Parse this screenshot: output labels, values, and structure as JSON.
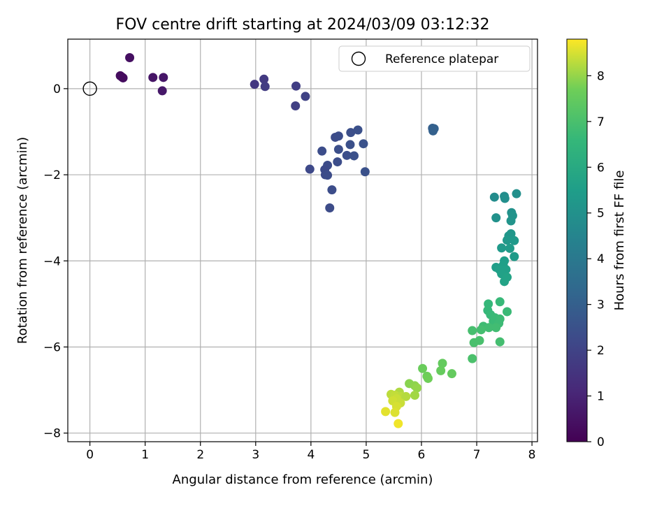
{
  "chart_data": {
    "type": "scatter",
    "title": "FOV centre drift starting at 2024/03/09 03:12:32",
    "xlabel": "Angular distance from reference (arcmin)",
    "ylabel": "Rotation from reference (arcmin)",
    "xlim": [
      -0.4,
      8.1
    ],
    "ylim": [
      -8.2,
      1.15
    ],
    "xticks": [
      0,
      1,
      2,
      3,
      4,
      5,
      6,
      7,
      8
    ],
    "yticks": [
      0,
      -2,
      -4,
      -6,
      -8
    ],
    "grid": true,
    "legend": {
      "position": "top-right",
      "entries": [
        "Reference platepar"
      ]
    },
    "reference_point": {
      "x": 0,
      "y": 0,
      "marker": "open-circle"
    },
    "colorbar": {
      "label": "Hours from first FF file",
      "colormap": "viridis",
      "min": 0,
      "max": 8.8,
      "ticks": [
        0,
        1,
        2,
        3,
        4,
        5,
        6,
        7,
        8
      ]
    },
    "points": [
      {
        "x": 0.55,
        "y": 0.3,
        "c": 0.3
      },
      {
        "x": 0.6,
        "y": 0.25,
        "c": 0.35
      },
      {
        "x": 0.58,
        "y": 0.27,
        "c": 0.3
      },
      {
        "x": 0.72,
        "y": 0.72,
        "c": 0.4
      },
      {
        "x": 1.14,
        "y": 0.26,
        "c": 0.55
      },
      {
        "x": 1.33,
        "y": 0.26,
        "c": 0.6
      },
      {
        "x": 1.31,
        "y": -0.05,
        "c": 0.65
      },
      {
        "x": 2.98,
        "y": 0.1,
        "c": 1.6
      },
      {
        "x": 3.15,
        "y": 0.22,
        "c": 1.7
      },
      {
        "x": 3.17,
        "y": 0.05,
        "c": 1.75
      },
      {
        "x": 3.73,
        "y": 0.06,
        "c": 1.85
      },
      {
        "x": 3.72,
        "y": -0.4,
        "c": 1.9
      },
      {
        "x": 3.9,
        "y": -0.18,
        "c": 1.95
      },
      {
        "x": 4.44,
        "y": -1.13,
        "c": 2.3
      },
      {
        "x": 4.5,
        "y": -1.1,
        "c": 2.35
      },
      {
        "x": 4.72,
        "y": -1.02,
        "c": 2.4
      },
      {
        "x": 4.85,
        "y": -0.96,
        "c": 2.45
      },
      {
        "x": 4.95,
        "y": -1.28,
        "c": 2.5
      },
      {
        "x": 4.71,
        "y": -1.3,
        "c": 2.45
      },
      {
        "x": 4.5,
        "y": -1.41,
        "c": 2.4
      },
      {
        "x": 4.2,
        "y": -1.45,
        "c": 2.35
      },
      {
        "x": 4.65,
        "y": -1.55,
        "c": 2.4
      },
      {
        "x": 4.78,
        "y": -1.56,
        "c": 2.45
      },
      {
        "x": 4.48,
        "y": -1.7,
        "c": 2.35
      },
      {
        "x": 4.3,
        "y": -1.78,
        "c": 2.3
      },
      {
        "x": 3.98,
        "y": -1.87,
        "c": 2.2
      },
      {
        "x": 4.25,
        "y": -1.88,
        "c": 2.25
      },
      {
        "x": 4.98,
        "y": -1.93,
        "c": 2.5
      },
      {
        "x": 4.26,
        "y": -2.0,
        "c": 2.25
      },
      {
        "x": 4.3,
        "y": -2.01,
        "c": 2.3
      },
      {
        "x": 4.38,
        "y": -2.35,
        "c": 2.35
      },
      {
        "x": 4.34,
        "y": -2.77,
        "c": 2.3
      },
      {
        "x": 6.2,
        "y": -0.92,
        "c": 3.0
      },
      {
        "x": 6.23,
        "y": -0.93,
        "c": 3.05
      },
      {
        "x": 6.21,
        "y": -0.98,
        "c": 3.05
      },
      {
        "x": 7.32,
        "y": -2.52,
        "c": 4.8
      },
      {
        "x": 7.5,
        "y": -2.5,
        "c": 4.85
      },
      {
        "x": 7.51,
        "y": -2.55,
        "c": 4.9
      },
      {
        "x": 7.72,
        "y": -2.44,
        "c": 4.95
      },
      {
        "x": 7.63,
        "y": -2.88,
        "c": 5.0
      },
      {
        "x": 7.65,
        "y": -2.95,
        "c": 5.05
      },
      {
        "x": 7.35,
        "y": -3.0,
        "c": 5.0
      },
      {
        "x": 7.62,
        "y": -3.07,
        "c": 5.1
      },
      {
        "x": 7.62,
        "y": -3.37,
        "c": 5.2
      },
      {
        "x": 7.58,
        "y": -3.42,
        "c": 5.2
      },
      {
        "x": 7.55,
        "y": -3.52,
        "c": 5.25
      },
      {
        "x": 7.68,
        "y": -3.53,
        "c": 5.3
      },
      {
        "x": 7.45,
        "y": -3.7,
        "c": 5.35
      },
      {
        "x": 7.6,
        "y": -3.71,
        "c": 5.4
      },
      {
        "x": 7.68,
        "y": -3.9,
        "c": 5.4
      },
      {
        "x": 7.5,
        "y": -4.0,
        "c": 5.5
      },
      {
        "x": 7.48,
        "y": -4.1,
        "c": 5.55
      },
      {
        "x": 7.35,
        "y": -4.15,
        "c": 5.5
      },
      {
        "x": 7.41,
        "y": -4.2,
        "c": 5.6
      },
      {
        "x": 7.53,
        "y": -4.2,
        "c": 5.6
      },
      {
        "x": 7.45,
        "y": -4.3,
        "c": 5.65
      },
      {
        "x": 7.55,
        "y": -4.38,
        "c": 5.7
      },
      {
        "x": 7.5,
        "y": -4.48,
        "c": 5.7
      },
      {
        "x": 7.21,
        "y": -5.0,
        "c": 6.6
      },
      {
        "x": 7.42,
        "y": -4.95,
        "c": 6.65
      },
      {
        "x": 7.2,
        "y": -5.15,
        "c": 6.6
      },
      {
        "x": 7.55,
        "y": -5.18,
        "c": 6.7
      },
      {
        "x": 7.25,
        "y": -5.25,
        "c": 6.65
      },
      {
        "x": 7.33,
        "y": -5.32,
        "c": 6.7
      },
      {
        "x": 7.42,
        "y": -5.35,
        "c": 6.75
      },
      {
        "x": 7.3,
        "y": -5.4,
        "c": 6.7
      },
      {
        "x": 7.4,
        "y": -5.45,
        "c": 6.75
      },
      {
        "x": 7.12,
        "y": -5.52,
        "c": 6.8
      },
      {
        "x": 7.22,
        "y": -5.55,
        "c": 6.85
      },
      {
        "x": 7.35,
        "y": -5.55,
        "c": 6.85
      },
      {
        "x": 7.08,
        "y": -5.6,
        "c": 6.9
      },
      {
        "x": 6.92,
        "y": -5.62,
        "c": 6.95
      },
      {
        "x": 7.05,
        "y": -5.85,
        "c": 7.0
      },
      {
        "x": 6.95,
        "y": -5.9,
        "c": 7.0
      },
      {
        "x": 7.42,
        "y": -5.88,
        "c": 6.9
      },
      {
        "x": 6.92,
        "y": -6.27,
        "c": 7.05
      },
      {
        "x": 6.02,
        "y": -6.5,
        "c": 7.6
      },
      {
        "x": 6.38,
        "y": -6.38,
        "c": 7.5
      },
      {
        "x": 6.35,
        "y": -6.55,
        "c": 7.55
      },
      {
        "x": 6.55,
        "y": -6.62,
        "c": 7.5
      },
      {
        "x": 6.1,
        "y": -6.68,
        "c": 7.65
      },
      {
        "x": 6.12,
        "y": -6.73,
        "c": 7.7
      },
      {
        "x": 5.78,
        "y": -6.85,
        "c": 7.9
      },
      {
        "x": 5.88,
        "y": -6.9,
        "c": 7.95
      },
      {
        "x": 5.92,
        "y": -6.95,
        "c": 8.0
      },
      {
        "x": 5.6,
        "y": -7.05,
        "c": 8.2
      },
      {
        "x": 5.45,
        "y": -7.1,
        "c": 8.3
      },
      {
        "x": 5.52,
        "y": -7.12,
        "c": 8.35
      },
      {
        "x": 5.63,
        "y": -7.15,
        "c": 8.3
      },
      {
        "x": 5.72,
        "y": -7.15,
        "c": 8.25
      },
      {
        "x": 5.88,
        "y": -7.12,
        "c": 8.1
      },
      {
        "x": 5.55,
        "y": -7.2,
        "c": 8.4
      },
      {
        "x": 5.48,
        "y": -7.25,
        "c": 8.45
      },
      {
        "x": 5.62,
        "y": -7.3,
        "c": 8.4
      },
      {
        "x": 5.55,
        "y": -7.38,
        "c": 8.5
      },
      {
        "x": 5.35,
        "y": -7.5,
        "c": 8.6
      },
      {
        "x": 5.52,
        "y": -7.52,
        "c": 8.55
      },
      {
        "x": 5.58,
        "y": -7.78,
        "c": 8.7
      }
    ]
  }
}
